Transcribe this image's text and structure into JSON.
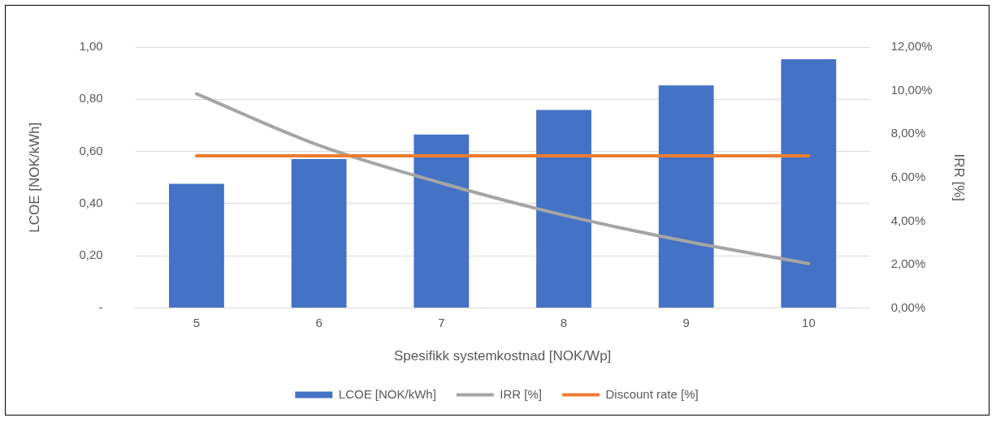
{
  "chart_data": {
    "type": "bar",
    "xlabel": "Spesifikk systemkostnad [NOK/Wp]",
    "ylabel": "LCOE [NOK/kWh]",
    "y2label": "IRR [%]",
    "categories": [
      "5",
      "6",
      "7",
      "8",
      "9",
      "10"
    ],
    "series": [
      {
        "name": "LCOE [NOK/kWh]",
        "color": "#4472c4",
        "values": [
          0.476,
          0.571,
          0.665,
          0.759,
          0.853,
          0.953
        ]
      },
      {
        "name": "IRR [%]",
        "type": "line",
        "axis": "y2",
        "color": "#a5a5a5",
        "values": [
          9.85,
          7.48,
          5.75,
          4.27,
          3.07,
          2.05
        ]
      },
      {
        "name": "Discount rate [%]",
        "type": "line",
        "axis": "y2",
        "color": "#ed7d31",
        "values": [
          7,
          7,
          7,
          7,
          7,
          7
        ]
      }
    ],
    "ylim": [
      0,
      1
    ],
    "yticks": [
      {
        "value": 0,
        "label": "-"
      },
      {
        "value": 0.2,
        "label": "0,20"
      },
      {
        "value": 0.4,
        "label": "0,40"
      },
      {
        "value": 0.6,
        "label": "0,60"
      },
      {
        "value": 0.8,
        "label": "0,80"
      },
      {
        "value": 1,
        "label": "1,00"
      }
    ],
    "y2lim": [
      0,
      12
    ],
    "y2ticks": [
      {
        "value": 0,
        "label": "0,00%"
      },
      {
        "value": 2,
        "label": "2,00%"
      },
      {
        "value": 4,
        "label": "4,00%"
      },
      {
        "value": 6,
        "label": "6,00%"
      },
      {
        "value": 8,
        "label": "8,00%"
      },
      {
        "value": 10,
        "label": "10,00%"
      },
      {
        "value": 12,
        "label": "12,00%"
      }
    ],
    "grid": "y",
    "legend": "bottom",
    "marker": "none",
    "line_style": "solid"
  }
}
